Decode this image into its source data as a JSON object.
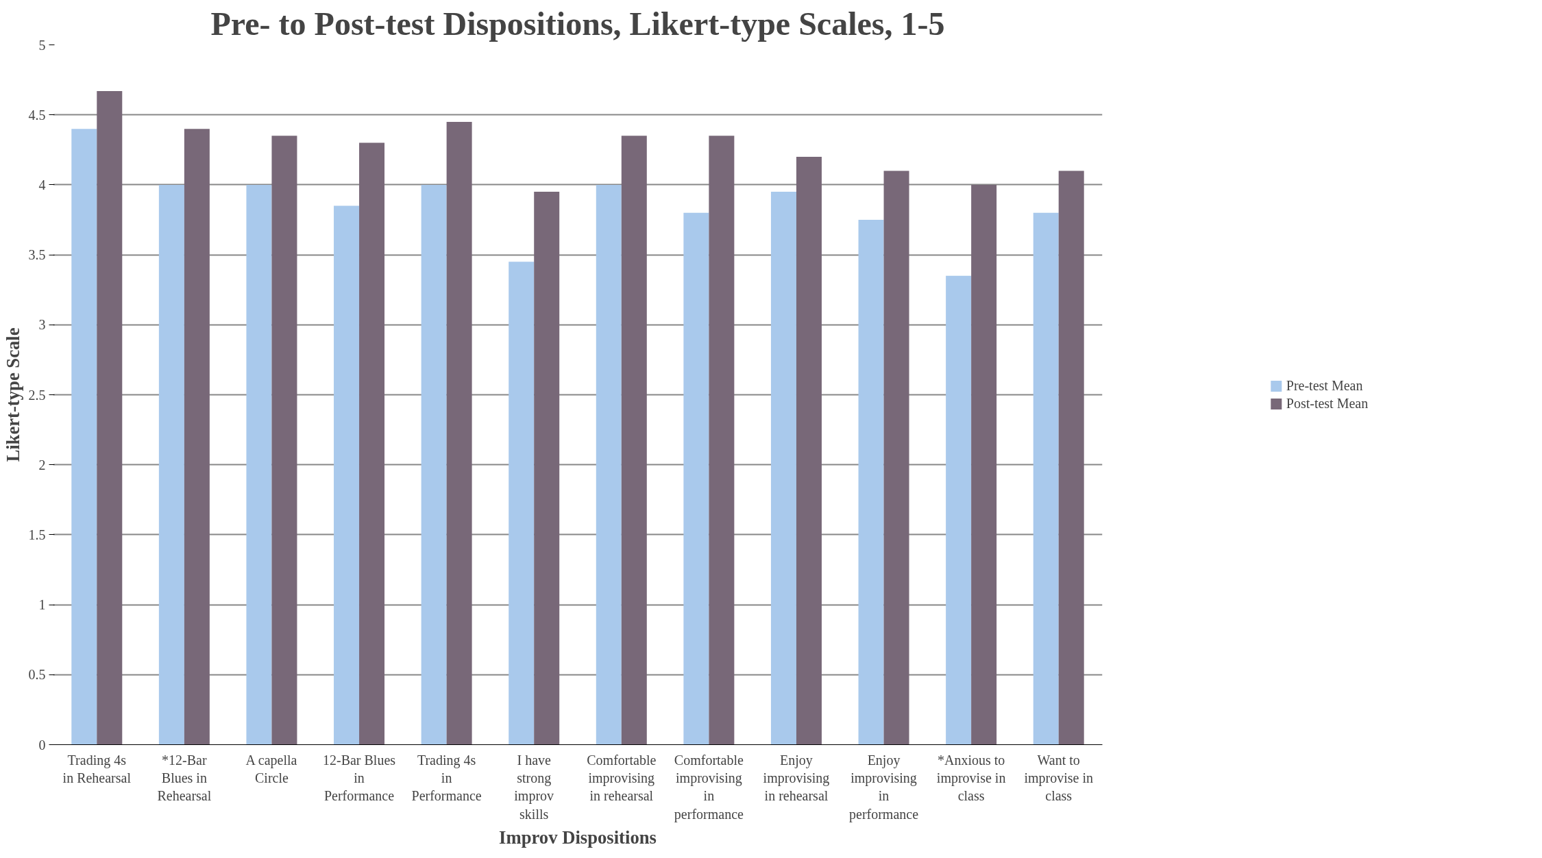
{
  "chart_data": {
    "type": "bar",
    "title": "Pre- to Post-test Dispositions, Likert-type Scales, 1-5",
    "xlabel": "Improv Dispositions",
    "ylabel": "Likert-type Scale",
    "categories": [
      "Trading 4s in Rehearsal",
      "*12-Bar Blues in Rehearsal",
      "A capella Circle",
      "12-Bar Blues in Performance",
      "Trading 4s in Performance",
      "I have strong improv skills",
      "Comfortable improvising in rehearsal",
      "Comfortable improvising in performance",
      "Enjoy improvising in rehearsal",
      "Enjoy improvising in performance",
      "*Anxious to improvise in class",
      "Want to improvise in class"
    ],
    "series": [
      {
        "name": "Pre-test Mean",
        "color": "#a9c9ec",
        "values": [
          4.4,
          4.0,
          4.0,
          3.85,
          4.0,
          3.45,
          4.0,
          3.8,
          3.95,
          3.75,
          3.35,
          3.8
        ]
      },
      {
        "name": "Post-test Mean",
        "color": "#786878",
        "values": [
          4.67,
          4.4,
          4.35,
          4.3,
          4.45,
          3.95,
          4.35,
          4.35,
          4.2,
          4.1,
          4.0,
          4.1
        ]
      }
    ],
    "ylim": [
      0,
      5
    ],
    "yticks": [
      0,
      0.5,
      1,
      1.5,
      2,
      2.5,
      3,
      3.5,
      4,
      4.5,
      5
    ],
    "grid": "y",
    "legend": "right"
  }
}
